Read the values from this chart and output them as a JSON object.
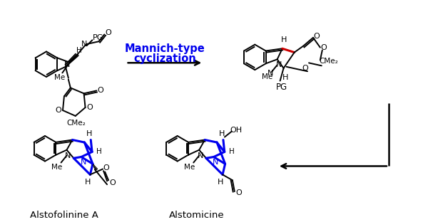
{
  "background_color": "#ffffff",
  "blue_color": "#0000EE",
  "red_color": "#CC0000",
  "black_color": "#000000",
  "mannich_text_1": "Mannich-type",
  "mannich_text_2": "cyclization",
  "label_alstofolinine": "Alstofolinine A",
  "label_alstomicine": "Alstomicine",
  "figsize": [
    6.0,
    3.12
  ],
  "dpi": 100
}
